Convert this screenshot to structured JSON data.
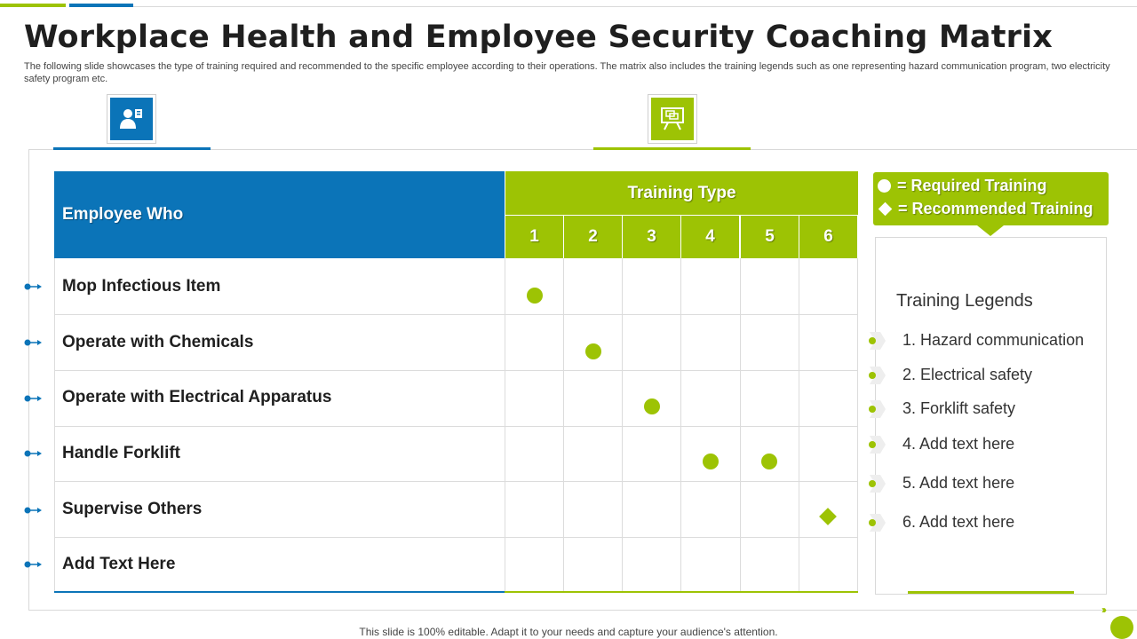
{
  "title": "Workplace Health and Employee Security Coaching Matrix",
  "subtitle": "The following slide showcases the type of training required and recommended to the specific employee according to their operations. The matrix also includes the training legends such as one representing hazard communication program, two electricity safety program etc.",
  "colors": {
    "blue": "#0b74b8",
    "green": "#9dc304"
  },
  "icons": {
    "left": "employee-id-icon",
    "right": "presentation-board-icon"
  },
  "table": {
    "employee_header": "Employee Who",
    "training_header": "Training Type",
    "columns": [
      "1",
      "2",
      "3",
      "4",
      "5",
      "6"
    ],
    "rows": [
      {
        "label": "Mop Infectious Item",
        "marks": [
          "required",
          "",
          "",
          "",
          "",
          ""
        ]
      },
      {
        "label": "Operate with Chemicals",
        "marks": [
          "",
          "required",
          "",
          "",
          "",
          ""
        ]
      },
      {
        "label": "Operate with Electrical Apparatus",
        "marks": [
          "",
          "",
          "required",
          "",
          "",
          ""
        ]
      },
      {
        "label": "Handle Forklift",
        "marks": [
          "",
          "",
          "",
          "required",
          "required",
          ""
        ]
      },
      {
        "label": "Supervise Others",
        "marks": [
          "",
          "",
          "",
          "",
          "",
          "recommended"
        ]
      },
      {
        "label": "Add Text Here",
        "marks": [
          "",
          "",
          "",
          "",
          "",
          ""
        ]
      }
    ]
  },
  "legend_key": {
    "required": "= Required Training",
    "recommended": "= Recommended Training"
  },
  "training_legends": {
    "title": "Training  Legends",
    "items": [
      "1. Hazard communication",
      "2. Electrical safety",
      "3. Forklift safety",
      "4. Add text here",
      "5. Add text here",
      "6. Add text here"
    ]
  },
  "footer": "This slide is 100% editable. Adapt it to your needs and capture your audience's attention.",
  "footer_arrows": "›››"
}
